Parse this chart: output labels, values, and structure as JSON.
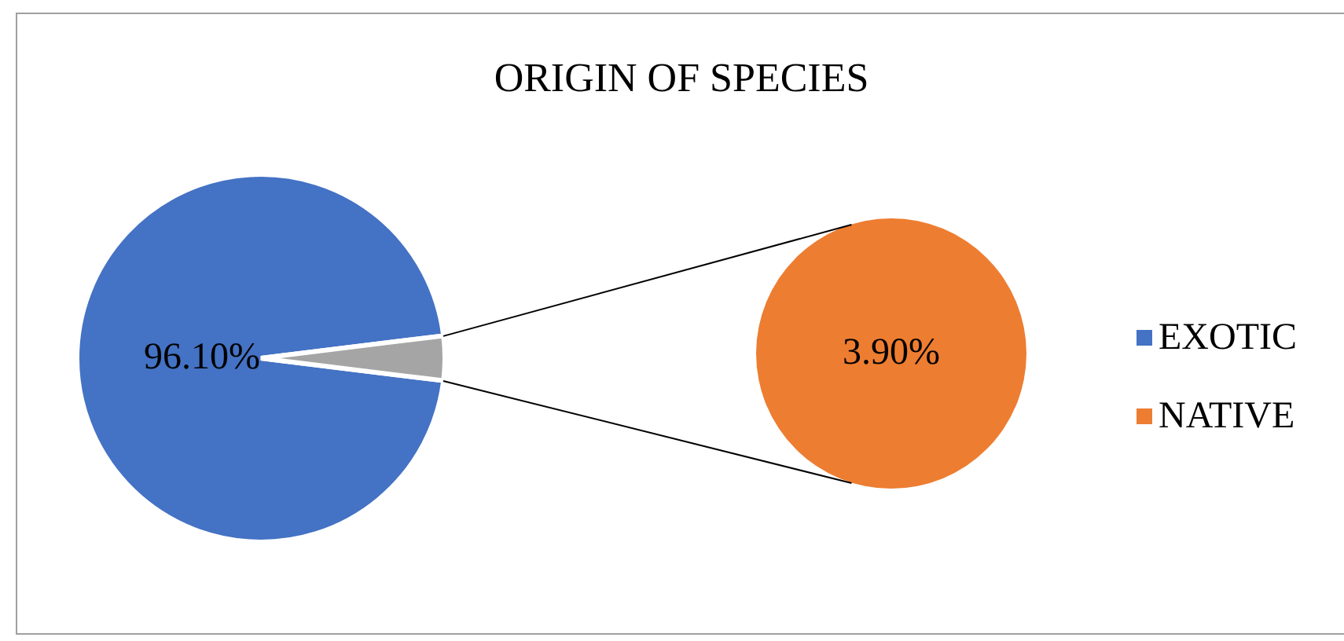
{
  "chart_data": [
    {
      "type": "pie",
      "title": "ORIGIN OF SPECIES",
      "categories": [
        "EXOTIC",
        null
      ],
      "values": [
        96.1,
        3.9
      ],
      "colors": [
        "#4472c4",
        "#a5a5a5"
      ],
      "value_labels": [
        "96.10%",
        null
      ],
      "legend": "right"
    },
    {
      "type": "pie",
      "categories": [
        "NATIVE"
      ],
      "values": [
        3.9
      ],
      "colors": [
        "#ed7d31"
      ],
      "value_labels": [
        "3.90%"
      ],
      "legend": "right"
    }
  ]
}
